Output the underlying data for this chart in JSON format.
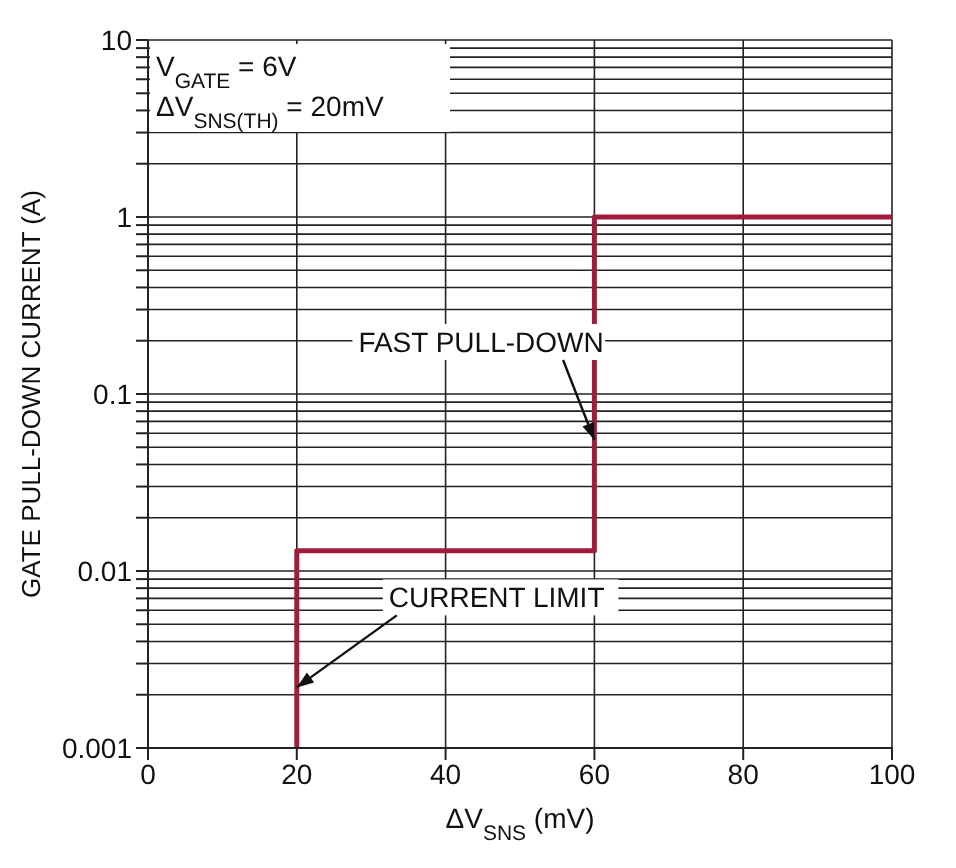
{
  "chart_data": {
    "type": "line",
    "xlabel": "ΔV$_{SNS}$ (mV)",
    "ylabel": "GATE PULL-DOWN CURRENT (A)",
    "series": [
      {
        "color": "#a01c3c",
        "x": [
          20,
          20,
          60,
          60,
          100
        ],
        "values": [
          0.001,
          0.013,
          0.013,
          1,
          1
        ]
      }
    ],
    "log": "y",
    "xlim": [
      0,
      100
    ],
    "xticks": [
      0,
      20,
      40,
      60,
      80,
      100
    ],
    "ylim": [
      0.001,
      10
    ],
    "yticks": [
      0.001,
      {
        "value": 0.002,
        "label": null
      },
      {
        "value": 0.003,
        "label": null
      },
      {
        "value": 0.004,
        "label": null
      },
      {
        "value": 0.005,
        "label": null
      },
      {
        "value": 0.006,
        "label": null
      },
      {
        "value": 0.007,
        "label": null
      },
      {
        "value": 0.008,
        "label": null
      },
      {
        "value": 0.009,
        "label": null
      },
      0.01,
      {
        "value": 0.02,
        "label": null
      },
      {
        "value": 0.03,
        "label": null
      },
      {
        "value": 0.04,
        "label": null
      },
      {
        "value": 0.05,
        "label": null
      },
      {
        "value": 0.06,
        "label": null
      },
      {
        "value": 0.07,
        "label": null
      },
      {
        "value": 0.08,
        "label": null
      },
      {
        "value": 0.09,
        "label": null
      },
      0.1,
      {
        "value": 0.2,
        "label": null
      },
      {
        "value": 0.3,
        "label": null
      },
      {
        "value": 0.4,
        "label": null
      },
      {
        "value": 0.5,
        "label": null
      },
      {
        "value": 0.6,
        "label": null
      },
      {
        "value": 0.7,
        "label": null
      },
      {
        "value": 0.8,
        "label": null
      },
      {
        "value": 0.9,
        "label": null
      },
      1,
      {
        "value": 2,
        "label": null
      },
      {
        "value": 3,
        "label": null
      },
      {
        "value": 4,
        "label": null
      },
      {
        "value": 5,
        "label": null
      },
      {
        "value": 6,
        "label": null
      },
      {
        "value": 7,
        "label": null
      },
      {
        "value": 8,
        "label": null
      },
      {
        "value": 9,
        "label": null
      },
      10
    ],
    "grid": true,
    "marker": "none",
    "annotations": [
      "V$_{GATE}$ = 6V",
      "ΔV$_{SNS(TH)}$ = 20mV",
      {
        "text": "FAST PULL-DOWN",
        "x": 60,
        "y": 0.055
      },
      {
        "text": "CURRENT LIMIT",
        "x": 20,
        "y": 0.0022
      }
    ]
  }
}
